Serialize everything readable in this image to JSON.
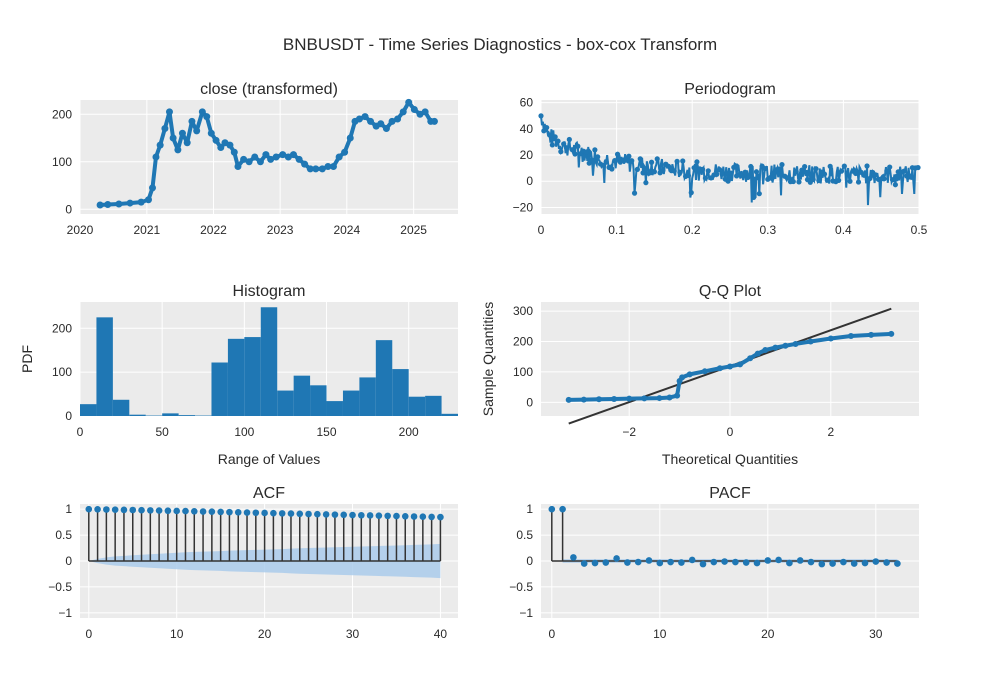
{
  "figure": {
    "title": "BNBUSDT - Time Series Diagnostics - box-cox Transform"
  },
  "colors": {
    "series": "#1f77b4",
    "plot_bg": "#ebebeb",
    "grid": "#ffffff",
    "line_dark": "#333333",
    "conf_band": "#aacbeb",
    "text": "#2a2a2a"
  },
  "chart_data": [
    {
      "id": "close",
      "type": "line",
      "title": "close (transformed)",
      "xlabel": "",
      "ylabel": "",
      "xticks": [
        "2020",
        "2021",
        "2022",
        "2023",
        "2024",
        "2025"
      ],
      "yticks": [
        "0",
        "100",
        "200"
      ],
      "xlim": [
        "2020-01-01",
        "2025-09-01"
      ],
      "ylim": [
        -10,
        230
      ],
      "x": [
        "2020-04-20",
        "2020-06-01",
        "2020-08-01",
        "2020-10-01",
        "2020-12-01",
        "2021-01-10",
        "2021-02-01",
        "2021-02-20",
        "2021-03-15",
        "2021-04-10",
        "2021-05-05",
        "2021-05-25",
        "2021-06-20",
        "2021-07-15",
        "2021-08-10",
        "2021-09-05",
        "2021-10-01",
        "2021-11-01",
        "2021-11-25",
        "2021-12-20",
        "2022-01-15",
        "2022-02-10",
        "2022-03-05",
        "2022-04-01",
        "2022-04-25",
        "2022-05-15",
        "2022-06-15",
        "2022-07-15",
        "2022-08-15",
        "2022-09-15",
        "2022-10-15",
        "2022-11-10",
        "2022-12-10",
        "2023-01-15",
        "2023-02-15",
        "2023-03-15",
        "2023-04-15",
        "2023-05-15",
        "2023-06-15",
        "2023-07-15",
        "2023-08-20",
        "2023-09-20",
        "2023-10-20",
        "2023-11-20",
        "2023-12-20",
        "2024-01-20",
        "2024-02-15",
        "2024-03-10",
        "2024-04-10",
        "2024-05-10",
        "2024-06-10",
        "2024-07-05",
        "2024-08-05",
        "2024-09-05",
        "2024-10-05",
        "2024-11-05",
        "2024-12-05",
        "2025-01-05",
        "2025-02-05",
        "2025-03-05",
        "2025-04-05",
        "2025-04-25"
      ],
      "y": [
        9,
        10,
        11,
        13,
        15,
        20,
        45,
        110,
        135,
        170,
        205,
        150,
        125,
        160,
        140,
        185,
        165,
        205,
        195,
        160,
        145,
        130,
        140,
        135,
        120,
        90,
        105,
        100,
        110,
        100,
        115,
        105,
        110,
        115,
        110,
        115,
        105,
        95,
        85,
        85,
        85,
        90,
        90,
        110,
        120,
        150,
        185,
        190,
        195,
        185,
        175,
        180,
        170,
        185,
        190,
        205,
        225,
        210,
        200,
        205,
        185,
        185
      ]
    },
    {
      "id": "periodogram",
      "type": "line",
      "title": "Periodogram",
      "xlabel": "",
      "ylabel": "",
      "xticks": [
        "0",
        "0.1",
        "0.2",
        "0.3",
        "0.4",
        "0.5"
      ],
      "yticks": [
        "−20",
        "0",
        "20",
        "40",
        "60"
      ],
      "xlim": [
        0,
        0.5
      ],
      "ylim": [
        -25,
        62
      ],
      "trend_x": [
        0,
        0.01,
        0.03,
        0.06,
        0.1,
        0.15,
        0.2,
        0.3,
        0.4,
        0.5
      ],
      "trend_y": [
        50,
        35,
        27,
        21,
        15,
        11,
        8,
        6,
        5,
        5
      ],
      "noise_amplitude": 7
    },
    {
      "id": "histogram",
      "type": "bar",
      "title": "Histogram",
      "xlabel": "Range of Values",
      "ylabel": "PDF",
      "xticks": [
        "0",
        "50",
        "100",
        "150",
        "200"
      ],
      "yticks": [
        "0",
        "100",
        "200"
      ],
      "xlim": [
        0,
        230
      ],
      "ylim": [
        0,
        260
      ],
      "bin_width": 10,
      "bin_starts": [
        0,
        10,
        20,
        30,
        40,
        50,
        60,
        70,
        80,
        90,
        100,
        110,
        120,
        130,
        140,
        150,
        160,
        170,
        180,
        190,
        200,
        210,
        220
      ],
      "values": [
        27,
        225,
        37,
        3,
        1,
        6,
        2,
        1,
        122,
        176,
        180,
        248,
        58,
        92,
        70,
        34,
        58,
        88,
        173,
        107,
        44,
        46,
        5
      ]
    },
    {
      "id": "qq",
      "type": "scatter",
      "title": "Q-Q Plot",
      "xlabel": "Theoretical Quantities",
      "ylabel": "Sample Quantities",
      "xticks": [
        "−2",
        "0",
        "2"
      ],
      "yticks": [
        "0",
        "100",
        "200",
        "300"
      ],
      "xlim": [
        -3.75,
        3.75
      ],
      "ylim": [
        -45,
        330
      ],
      "x": [
        -3.2,
        -2.9,
        -2.6,
        -2.3,
        -2.0,
        -1.7,
        -1.4,
        -1.2,
        -1.05,
        -1.0,
        -0.95,
        -0.8,
        -0.5,
        -0.2,
        0.0,
        0.2,
        0.4,
        0.55,
        0.7,
        0.9,
        1.1,
        1.3,
        1.6,
        2.0,
        2.4,
        2.8,
        3.2
      ],
      "y": [
        8,
        9,
        10,
        11,
        12,
        13,
        14,
        16,
        22,
        70,
        82,
        92,
        102,
        112,
        118,
        125,
        145,
        160,
        172,
        180,
        186,
        192,
        200,
        210,
        218,
        222,
        225
      ],
      "ref_line_x": [
        -3.2,
        3.2
      ],
      "ref_line_y": [
        -70,
        308
      ]
    },
    {
      "id": "acf",
      "type": "bar",
      "title": "ACF",
      "xlabel": "",
      "ylabel": "",
      "xticks": [
        "0",
        "10",
        "20",
        "30",
        "40"
      ],
      "yticks": [
        "−1",
        "−0.5",
        "0",
        "0.5",
        "1"
      ],
      "xlim": [
        -1,
        42
      ],
      "ylim": [
        -1.1,
        1.1
      ],
      "lags": [
        0,
        1,
        2,
        3,
        4,
        5,
        6,
        7,
        8,
        9,
        10,
        11,
        12,
        13,
        14,
        15,
        16,
        17,
        18,
        19,
        20,
        21,
        22,
        23,
        24,
        25,
        26,
        27,
        28,
        29,
        30,
        31,
        32,
        33,
        34,
        35,
        36,
        37,
        38,
        39,
        40
      ],
      "values": [
        1.0,
        0.997,
        0.994,
        0.99,
        0.987,
        0.984,
        0.98,
        0.977,
        0.973,
        0.97,
        0.966,
        0.963,
        0.959,
        0.955,
        0.951,
        0.947,
        0.943,
        0.939,
        0.935,
        0.931,
        0.927,
        0.923,
        0.919,
        0.915,
        0.911,
        0.907,
        0.903,
        0.899,
        0.895,
        0.891,
        0.887,
        0.883,
        0.879,
        0.875,
        0.871,
        0.867,
        0.863,
        0.859,
        0.855,
        0.851,
        0.847
      ],
      "conf_upper": [
        0,
        0.04,
        0.07,
        0.09,
        0.1,
        0.11,
        0.12,
        0.13,
        0.14,
        0.15,
        0.16,
        0.17,
        0.175,
        0.18,
        0.185,
        0.19,
        0.2,
        0.205,
        0.21,
        0.215,
        0.22,
        0.225,
        0.23,
        0.24,
        0.245,
        0.25,
        0.255,
        0.26,
        0.265,
        0.27,
        0.275,
        0.28,
        0.285,
        0.29,
        0.295,
        0.3,
        0.305,
        0.31,
        0.315,
        0.32,
        0.33
      ]
    },
    {
      "id": "pacf",
      "type": "bar",
      "title": "PACF",
      "xlabel": "",
      "ylabel": "",
      "xticks": [
        "0",
        "10",
        "20",
        "30"
      ],
      "yticks": [
        "−1",
        "−0.5",
        "0",
        "0.5",
        "1"
      ],
      "xlim": [
        -1,
        34
      ],
      "ylim": [
        -1.1,
        1.1
      ],
      "lags": [
        0,
        1,
        2,
        3,
        4,
        5,
        6,
        7,
        8,
        9,
        10,
        11,
        12,
        13,
        14,
        15,
        16,
        17,
        18,
        19,
        20,
        21,
        22,
        23,
        24,
        25,
        26,
        27,
        28,
        29,
        30,
        31,
        32
      ],
      "values": [
        1.0,
        1.0,
        0.07,
        -0.05,
        -0.04,
        -0.03,
        0.05,
        -0.03,
        -0.02,
        0.01,
        -0.04,
        -0.02,
        -0.03,
        0.02,
        -0.06,
        -0.02,
        -0.01,
        -0.02,
        -0.03,
        -0.04,
        0.01,
        0.02,
        -0.04,
        0.01,
        -0.02,
        -0.06,
        -0.05,
        -0.02,
        -0.05,
        -0.04,
        -0.01,
        -0.03,
        -0.05
      ],
      "conf_upper": 0.035
    }
  ]
}
